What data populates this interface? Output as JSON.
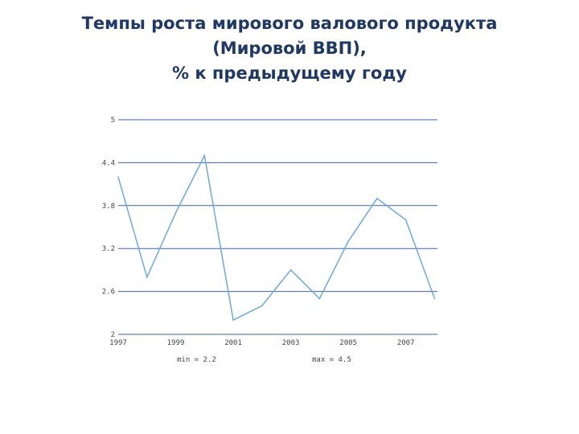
{
  "title_lines": [
    "Темпы роста мирового валового продукта",
    "(Мировой ВВП),",
    "% к предыдущему году"
  ],
  "chart_data": {
    "type": "line",
    "x": [
      1997,
      1998,
      1999,
      2000,
      2001,
      2002,
      2003,
      2004,
      2005,
      2006,
      2007,
      2008
    ],
    "series": [
      {
        "values": [
          4.2,
          2.8,
          3.7,
          4.5,
          2.2,
          2.4,
          2.9,
          2.5,
          3.3,
          3.9,
          3.6,
          2.5
        ]
      }
    ],
    "ylim": [
      2,
      5
    ],
    "yticks": [
      "5",
      "4.4",
      "3.8",
      "3.2",
      "2.6",
      "2"
    ],
    "xticks": [
      "1997",
      "1999",
      "2001",
      "2003",
      "2005",
      "2007"
    ],
    "min_label": "min = 2.2",
    "max_label": "max = 4.5",
    "line_color": "#6fa8dc",
    "grid_color": "#3a62b0",
    "grid": true
  }
}
